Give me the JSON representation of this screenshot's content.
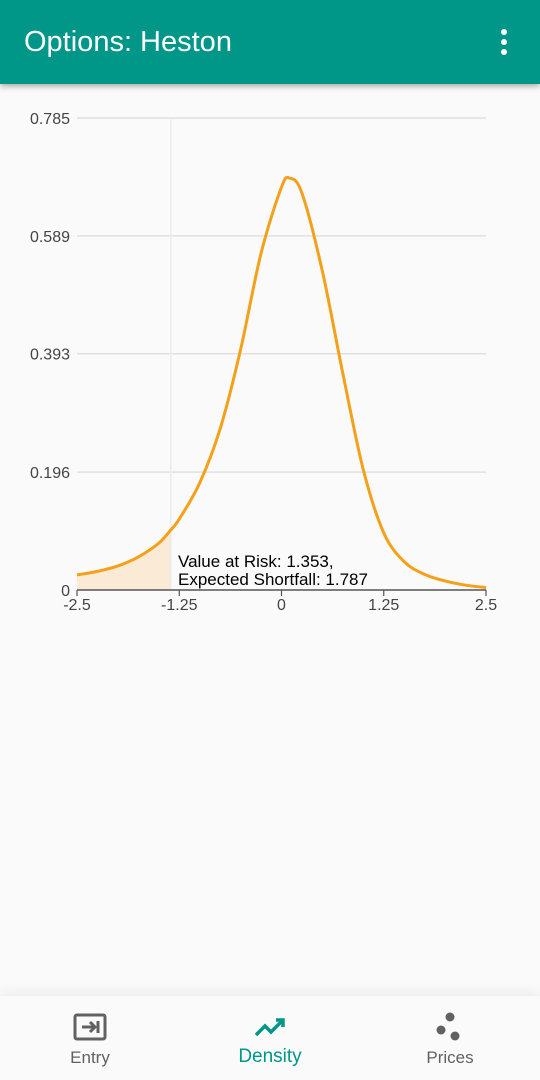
{
  "app": {
    "title": "Options: Heston"
  },
  "nav": {
    "items": [
      {
        "label": "Entry",
        "icon": "entry-icon"
      },
      {
        "label": "Density",
        "icon": "trending-up-icon",
        "active": true
      },
      {
        "label": "Prices",
        "icon": "scatter-dots-icon"
      }
    ]
  },
  "colors": {
    "primary": "#009688",
    "curve": "#f5a01a",
    "shade": "#fbebd6"
  },
  "chart_data": {
    "type": "area",
    "title": "",
    "xlabel": "",
    "ylabel": "",
    "xlim": [
      -2.5,
      2.5
    ],
    "ylim": [
      0,
      0.785
    ],
    "x_ticks": [
      -2.5,
      -1.25,
      0,
      1.25,
      2.5
    ],
    "x_tick_labels": [
      "-2.5",
      "-1.25",
      "0",
      "1.25",
      "2.5"
    ],
    "y_ticks": [
      0,
      0.196,
      0.393,
      0.589,
      0.785
    ],
    "y_tick_labels": [
      "0",
      "0.196",
      "0.393",
      "0.589",
      "0.785"
    ],
    "grid": true,
    "series": [
      {
        "x": [
          -2.5,
          -2.25,
          -2.0,
          -1.75,
          -1.5,
          -1.353,
          -1.25,
          -1.0,
          -0.75,
          -0.5,
          -0.25,
          0.0,
          0.1,
          0.25,
          0.5,
          0.75,
          1.0,
          1.25,
          1.5,
          1.75,
          2.0,
          2.25,
          2.5
        ],
        "y": [
          0.025,
          0.031,
          0.04,
          0.055,
          0.078,
          0.1,
          0.118,
          0.178,
          0.268,
          0.4,
          0.56,
          0.67,
          0.685,
          0.66,
          0.53,
          0.36,
          0.2,
          0.095,
          0.047,
          0.026,
          0.015,
          0.008,
          0.004
        ]
      }
    ],
    "shaded_region": {
      "x_from": -2.5,
      "x_to": -1.353
    },
    "marker_line_x": -1.353,
    "annotation": {
      "line1": "Value at Risk: 1.353,",
      "line2": "Expected Shortfall: 1.787"
    }
  }
}
